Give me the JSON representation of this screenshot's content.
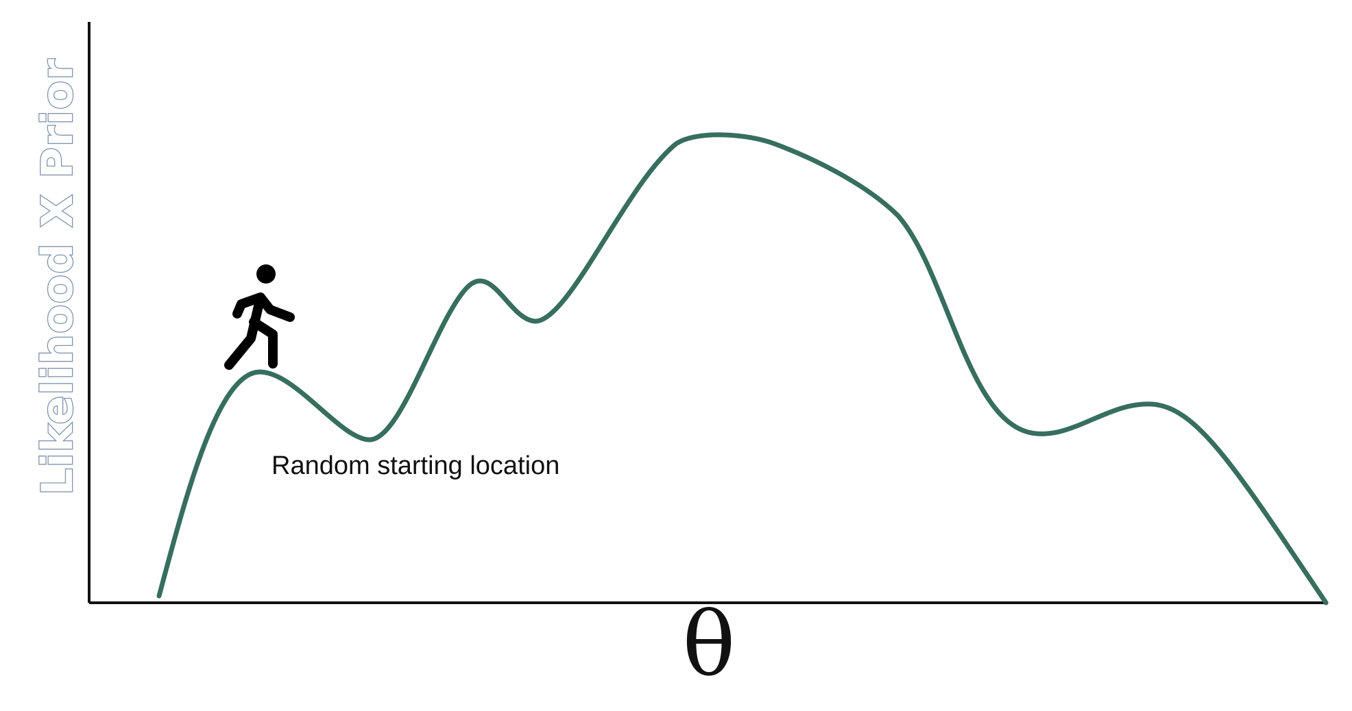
{
  "diagram": {
    "y_axis_label": "Likelihood X Prior",
    "x_axis_label": "θ",
    "annotation": "Random starting location",
    "icons": {
      "walker": "person-walking-icon"
    },
    "colors": {
      "curve": "#376e5e",
      "axis": "#111111",
      "y_label_outline": "#7f93ad",
      "walker": "#000000"
    }
  }
}
